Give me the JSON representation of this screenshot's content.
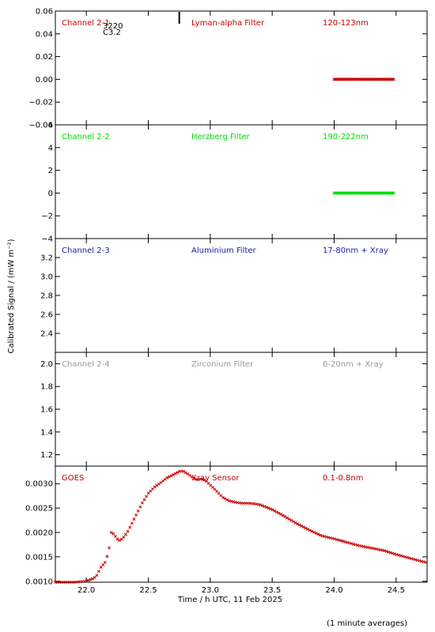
{
  "figure": {
    "ylabel": "Calibrated Signal / (mW m⁻²)",
    "xlabel": "Time / h UTC, 11 Feb 2025",
    "footnote": "(1 minute averages)",
    "xlim": [
      21.75,
      24.75
    ],
    "xticks": [
      "22.0",
      "22.5",
      "23.0",
      "23.5",
      "24.0",
      "24.5"
    ],
    "xtick_values": [
      22.0,
      22.5,
      23.0,
      23.5,
      24.0,
      24.5
    ]
  },
  "chart_data": [
    {
      "type": "scatter",
      "channel": "Channel 2-1",
      "filter": "Lyman-alpha Filter",
      "band": "120-123nm",
      "color": "#cc0000",
      "ylim": [
        -0.04,
        0.06
      ],
      "yticks": [
        "0.06",
        "0.04",
        "0.02",
        "0.00",
        "−0.02",
        "−0.04"
      ],
      "ytick_values": [
        0.06,
        0.04,
        0.02,
        0.0,
        -0.02,
        -0.04
      ],
      "annotations": [
        "3220",
        "C3.2"
      ],
      "annotation_x": 22.75,
      "series": [
        {
          "x_start": 24.0,
          "x_end": 24.48,
          "value": 0.0
        }
      ]
    },
    {
      "type": "scatter",
      "channel": "Channel 2-2",
      "filter": "Herzberg Filter",
      "band": "190-222nm",
      "color": "#00dd00",
      "ylim": [
        -4,
        6
      ],
      "yticks": [
        "6",
        "4",
        "2",
        "0",
        "−2",
        "−4"
      ],
      "ytick_values": [
        6,
        4,
        2,
        0,
        -2,
        -4
      ],
      "series": [
        {
          "x_start": 24.0,
          "x_end": 24.48,
          "value": 0.0
        }
      ]
    },
    {
      "type": "scatter",
      "channel": "Channel 2-3",
      "filter": "Aluminium Filter",
      "band": "17-80nm + Xray",
      "color": "#1a1aaa",
      "ylim": [
        2.2,
        3.4
      ],
      "yticks": [
        "3.2",
        "3.0",
        "2.8",
        "2.6",
        "2.4"
      ],
      "ytick_values": [
        3.2,
        3.0,
        2.8,
        2.6,
        2.4
      ],
      "series": []
    },
    {
      "type": "scatter",
      "channel": "Channel 2-4",
      "filter": "Zirconium Filter",
      "band": "6-20nm + Xray",
      "color": "#999999",
      "ylim": [
        1.1,
        2.1
      ],
      "yticks": [
        "2.0",
        "1.8",
        "1.6",
        "1.4",
        "1.2"
      ],
      "ytick_values": [
        2.0,
        1.8,
        1.6,
        1.4,
        1.2
      ],
      "series": []
    },
    {
      "type": "scatter",
      "channel": "GOES",
      "filter": "Xray Sensor",
      "band": "0.1-0.8nm",
      "color": "#cc0000",
      "ylim": [
        0.00098,
        0.00336
      ],
      "yticks": [
        "0.0030",
        "0.0025",
        "0.0020",
        "0.0015",
        "0.0010"
      ],
      "ytick_values": [
        0.003,
        0.0025,
        0.002,
        0.0015,
        0.001
      ],
      "series": [
        {
          "x": [
            21.75,
            21.9,
            22.0,
            22.05,
            22.08,
            22.1,
            22.12,
            22.15,
            22.18,
            22.2,
            22.22,
            22.24,
            22.26,
            22.28,
            22.3,
            22.33,
            22.36,
            22.4,
            22.45,
            22.5,
            22.55,
            22.6,
            22.65,
            22.7,
            22.75,
            22.78,
            22.8,
            22.83,
            22.87,
            22.9,
            22.93,
            22.97,
            23.0,
            23.05,
            23.1,
            23.15,
            23.2,
            23.25,
            23.3,
            23.35,
            23.4,
            23.45,
            23.5,
            23.55,
            23.6,
            23.7,
            23.8,
            23.9,
            24.0,
            24.1,
            24.2,
            24.3,
            24.4,
            24.5,
            24.6,
            24.75
          ],
          "y": [
            0.00098,
            0.00098,
            0.001,
            0.00105,
            0.0011,
            0.0012,
            0.0013,
            0.00138,
            0.0016,
            0.002,
            0.00197,
            0.0019,
            0.00183,
            0.00185,
            0.0019,
            0.002,
            0.00215,
            0.00235,
            0.0026,
            0.0028,
            0.00293,
            0.00302,
            0.00312,
            0.00318,
            0.00325,
            0.00326,
            0.00323,
            0.00318,
            0.0031,
            0.00308,
            0.0031,
            0.00305,
            0.00297,
            0.00285,
            0.00272,
            0.00265,
            0.00262,
            0.0026,
            0.0026,
            0.00259,
            0.00257,
            0.00252,
            0.00247,
            0.0024,
            0.00233,
            0.00218,
            0.00205,
            0.00193,
            0.00187,
            0.0018,
            0.00173,
            0.00168,
            0.00163,
            0.00155,
            0.00148,
            0.00138
          ]
        }
      ]
    }
  ]
}
